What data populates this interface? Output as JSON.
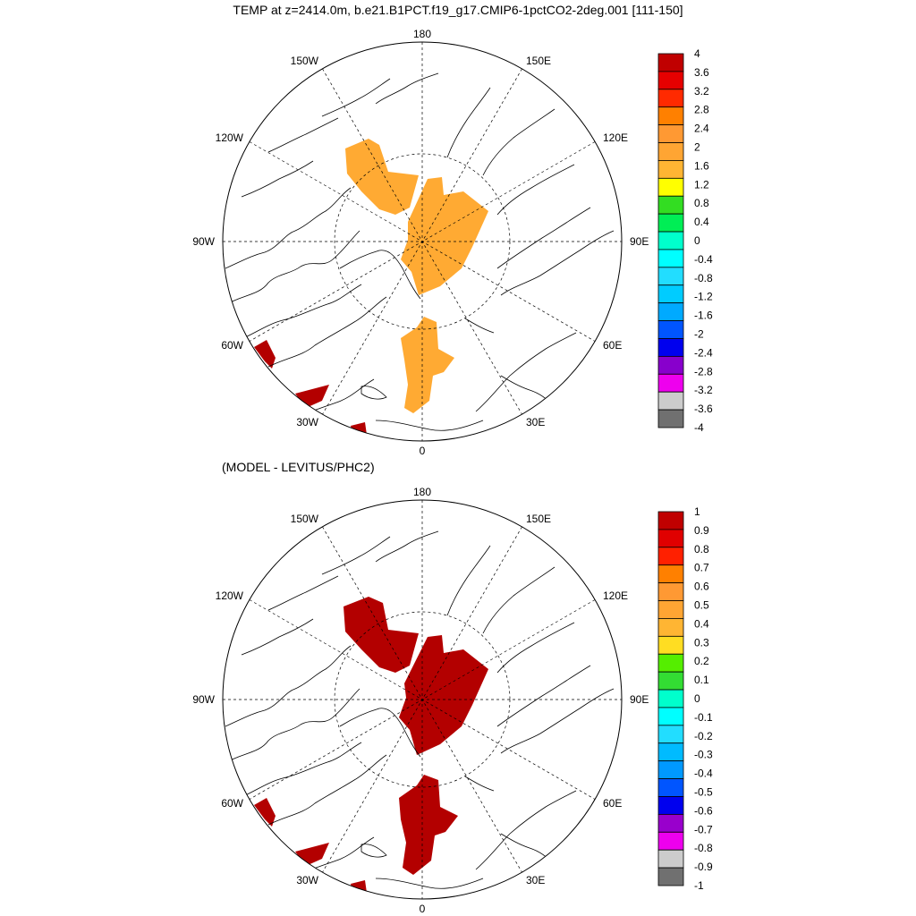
{
  "header": {
    "title": "TEMP at z=2414.0m, b.e21.B1PCT.f19_g17.CMIP6-1pctCO2-2deg.001 [111-150]",
    "subtitle": "(MODEL - LEVITUS/PHC2)"
  },
  "map_labels": {
    "lon_180": "180",
    "lon_150W": "150W",
    "lon_150E": "150E",
    "lon_120W": "120W",
    "lon_120E": "120E",
    "lon_90W": "90W",
    "lon_90E": "90E",
    "lon_60W": "60W",
    "lon_60E": "60E",
    "lon_30W": "30W",
    "lon_30E": "30E",
    "lon_0": "0"
  },
  "colorbar1": {
    "labels": [
      "4",
      "3.6",
      "3.2",
      "2.8",
      "2.4",
      "2",
      "1.6",
      "1.2",
      "0.8",
      "0.4",
      "0",
      "-0.4",
      "-0.8",
      "-1.2",
      "-1.6",
      "-2",
      "-2.4",
      "-2.8",
      "-3.2",
      "-3.6",
      "-4"
    ],
    "colors": [
      "#C00000",
      "#E60000",
      "#FF2A00",
      "#FF8000",
      "#FF9933",
      "#FFA533",
      "#FFB533",
      "#FFFF00",
      "#33DD22",
      "#00EE55",
      "#00FFCC",
      "#00FFFF",
      "#22DDFF",
      "#00CCFF",
      "#00AAFF",
      "#0055FF",
      "#0000EE",
      "#8800CC",
      "#EE00EE",
      "#CCCCCC",
      "#707070"
    ]
  },
  "colorbar2": {
    "labels": [
      "1",
      "0.9",
      "0.8",
      "0.7",
      "0.6",
      "0.5",
      "0.4",
      "0.3",
      "0.2",
      "0.1",
      "0",
      "-0.1",
      "-0.2",
      "-0.3",
      "-0.4",
      "-0.5",
      "-0.6",
      "-0.7",
      "-0.8",
      "-0.9",
      "-1"
    ],
    "colors": [
      "#C00000",
      "#E00000",
      "#FF2000",
      "#FF8000",
      "#FF9933",
      "#FFA533",
      "#FFB533",
      "#FFDD22",
      "#55EE00",
      "#33DD33",
      "#00FFCC",
      "#00FFFF",
      "#22DDFF",
      "#00BBFF",
      "#0099FF",
      "#0055FF",
      "#0000EE",
      "#9900CC",
      "#EE00EE",
      "#CCCCCC",
      "#707070"
    ]
  },
  "colors": {
    "anomaly_fill_top": "#FFAA33",
    "anomaly_fill_bottom": "#B30000",
    "warm_edge": "#B30000",
    "coast": "#000000"
  },
  "map_data": {
    "projection": "north polar stereographic",
    "grid": "dashed meridians every 30°, latitude circles",
    "field_top": "TEMP anomaly mostly in 1.6–2 range over Arctic basin",
    "field_bottom": "difference > 1 over Arctic basin"
  }
}
